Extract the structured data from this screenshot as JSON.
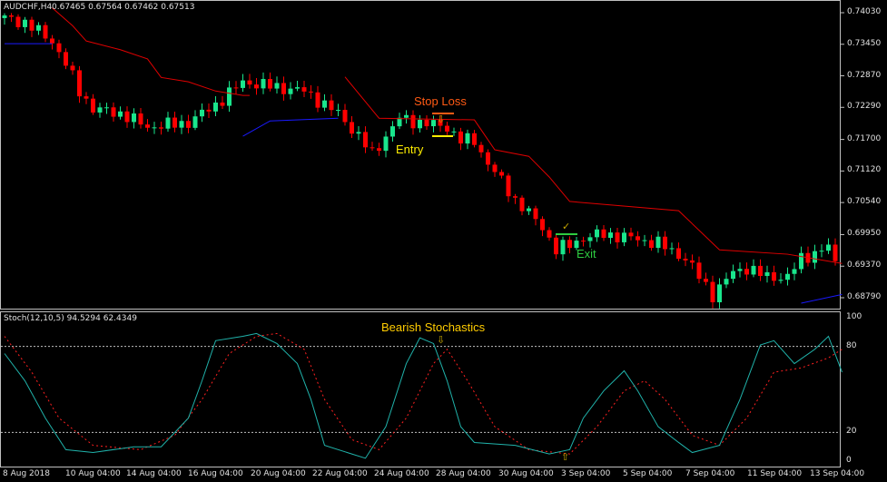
{
  "header": {
    "symbol": "AUDCHF,H4",
    "ohlc": "0.67465 0.67564 0.67462 0.67513"
  },
  "indicator": {
    "label": "Stoch(12,10,5) 94.5294 62.4349"
  },
  "annotations": {
    "stop_loss": "Stop Loss",
    "entry": "Entry",
    "exit": "Exit",
    "bearish": "Bearish Stochastics",
    "arrow_down": "⇩",
    "arrow_up": "⇧",
    "check": "✓"
  },
  "colors": {
    "bull": "#19e68c",
    "bear": "#ff0000",
    "trail_bear": "#e00000",
    "trail_bull": "#1a1aff",
    "stoch_main": "#20b2aa",
    "stoch_signal": "#ff2020",
    "stop": "#ff5a14",
    "entry": "#ffee00",
    "exit": "#2ecc40",
    "grid": "#c0c0c0"
  },
  "chart_data": [
    {
      "type": "candlestick",
      "title": "AUDCHF,H4",
      "price_ticks": [
        "0.74030",
        "0.73450",
        "0.72870",
        "0.72290",
        "0.71700",
        "0.71120",
        "0.70540",
        "0.69950",
        "0.69370",
        "0.68790"
      ],
      "time_ticks": [
        "8 Aug 2018",
        "10 Aug 04:00",
        "14 Aug 04:00",
        "16 Aug 04:00",
        "20 Aug 04:00",
        "22 Aug 04:00",
        "24 Aug 04:00",
        "28 Aug 04:00",
        "30 Aug 04:00",
        "3 Sep 04:00",
        "5 Sep 04:00",
        "7 Sep 04:00",
        "11 Sep 04:00",
        "13 Sep 04:00"
      ],
      "ylim": [
        0.6862,
        0.7412
      ],
      "bars": 123,
      "close_path": [
        [
          0,
          0.7393
        ],
        [
          3,
          0.7385
        ],
        [
          7,
          0.7351
        ],
        [
          9,
          0.7309
        ],
        [
          11,
          0.7259
        ],
        [
          13,
          0.7226
        ],
        [
          17,
          0.7218
        ],
        [
          21,
          0.7193
        ],
        [
          27,
          0.7201
        ],
        [
          31,
          0.7234
        ],
        [
          35,
          0.7276
        ],
        [
          39,
          0.7268
        ],
        [
          44,
          0.7259
        ],
        [
          47,
          0.7234
        ],
        [
          49,
          0.7218
        ],
        [
          52,
          0.7176
        ],
        [
          54,
          0.7143
        ],
        [
          56,
          0.7176
        ],
        [
          58,
          0.7209
        ],
        [
          61,
          0.7201
        ],
        [
          65,
          0.7193
        ],
        [
          67,
          0.7168
        ],
        [
          69,
          0.7168
        ],
        [
          71,
          0.7126
        ],
        [
          73,
          0.7093
        ],
        [
          75,
          0.7059
        ],
        [
          79,
          0.7009
        ],
        [
          81,
          0.6967
        ],
        [
          83,
          0.6976
        ],
        [
          85,
          0.6989
        ],
        [
          88,
          0.6996
        ],
        [
          92,
          0.6989
        ],
        [
          96,
          0.6979
        ],
        [
          100,
          0.6951
        ],
        [
          103,
          0.6901
        ],
        [
          104,
          0.6884
        ],
        [
          107,
          0.6926
        ],
        [
          109,
          0.6934
        ],
        [
          112,
          0.6917
        ],
        [
          115,
          0.6917
        ],
        [
          117,
          0.6951
        ],
        [
          121,
          0.6972
        ],
        [
          122,
          0.6942
        ]
      ],
      "trailing_stop_bear": [
        [
          [
            7,
            0.7412
          ],
          [
            10,
            0.7379
          ],
          [
            12,
            0.7351
          ],
          [
            17,
            0.7335
          ],
          [
            21,
            0.7318
          ],
          [
            23,
            0.7284
          ],
          [
            27,
            0.7276
          ],
          [
            31,
            0.7259
          ],
          [
            35,
            0.7251
          ],
          [
            36,
            0.7251
          ]
        ],
        [
          [
            50,
            0.7285
          ],
          [
            55,
            0.7209
          ],
          [
            69,
            0.7206
          ],
          [
            72,
            0.7151
          ],
          [
            77,
            0.7139
          ],
          [
            80,
            0.7101
          ],
          [
            83,
            0.7056
          ],
          [
            99,
            0.7039
          ],
          [
            105,
            0.6967
          ],
          [
            115,
            0.6959
          ],
          [
            123,
            0.6942
          ]
        ]
      ],
      "trailing_stop_bull": [
        [
          [
            0,
            0.7346
          ],
          [
            7,
            0.7346
          ]
        ],
        [
          [
            35,
            0.7176
          ],
          [
            39,
            0.7204
          ],
          [
            49,
            0.7209
          ]
        ],
        [
          [
            117,
            0.6869
          ],
          [
            123,
            0.6885
          ]
        ]
      ]
    },
    {
      "type": "line",
      "title": "Stoch(12,10,5)",
      "ylim": [
        0,
        100
      ],
      "levels": [
        20,
        80
      ],
      "y_ticks": [
        "100",
        "80",
        "20",
        "0"
      ],
      "series": [
        {
          "points": [
            [
              0,
              75
            ],
            [
              3,
              56
            ],
            [
              6,
              30
            ],
            [
              9,
              8
            ],
            [
              13,
              6
            ],
            [
              19,
              10
            ],
            [
              23,
              10
            ],
            [
              27,
              30
            ],
            [
              29,
              56
            ],
            [
              31,
              84
            ],
            [
              35,
              87
            ],
            [
              37,
              89
            ],
            [
              40,
              82
            ],
            [
              43,
              68
            ],
            [
              45,
              43
            ],
            [
              47,
              11
            ],
            [
              51,
              5
            ],
            [
              53,
              2
            ],
            [
              56,
              24
            ],
            [
              59,
              68
            ],
            [
              61,
              86
            ],
            [
              63,
              82
            ],
            [
              65,
              56
            ],
            [
              67,
              24
            ],
            [
              69,
              13
            ],
            [
              75,
              11
            ],
            [
              80,
              5
            ],
            [
              83,
              8
            ],
            [
              85,
              30
            ],
            [
              88,
              49
            ],
            [
              91,
              63
            ],
            [
              93,
              49
            ],
            [
              96,
              24
            ],
            [
              99,
              13
            ],
            [
              101,
              6
            ],
            [
              105,
              11
            ],
            [
              108,
              43
            ],
            [
              111,
              81
            ],
            [
              113,
              84
            ],
            [
              116,
              68
            ],
            [
              119,
              78
            ],
            [
              121,
              87
            ],
            [
              123,
              62
            ]
          ]
        },
        {
          "points": [
            [
              0,
              87
            ],
            [
              4,
              62
            ],
            [
              8,
              30
            ],
            [
              13,
              11
            ],
            [
              20,
              8
            ],
            [
              25,
              18
            ],
            [
              29,
              43
            ],
            [
              33,
              75
            ],
            [
              37,
              87
            ],
            [
              40,
              89
            ],
            [
              44,
              78
            ],
            [
              47,
              43
            ],
            [
              51,
              15
            ],
            [
              55,
              8
            ],
            [
              59,
              30
            ],
            [
              63,
              68
            ],
            [
              65,
              78
            ],
            [
              68,
              56
            ],
            [
              72,
              24
            ],
            [
              77,
              8
            ],
            [
              83,
              5
            ],
            [
              87,
              24
            ],
            [
              91,
              49
            ],
            [
              94,
              56
            ],
            [
              97,
              43
            ],
            [
              101,
              18
            ],
            [
              105,
              11
            ],
            [
              109,
              30
            ],
            [
              113,
              62
            ],
            [
              117,
              65
            ],
            [
              121,
              72
            ],
            [
              123,
              78
            ]
          ]
        }
      ]
    }
  ]
}
